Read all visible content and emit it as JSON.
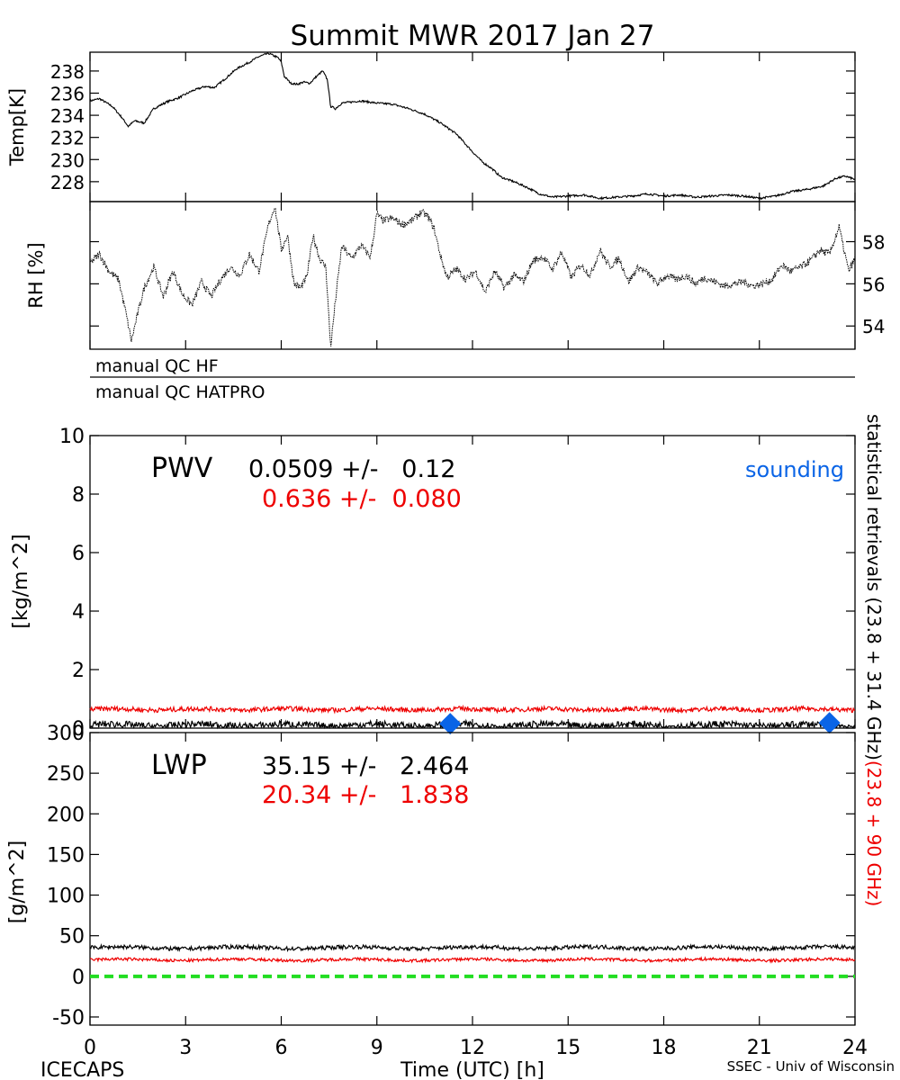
{
  "title": "Summit MWR 2017 Jan 27",
  "footer": {
    "left": "ICECAPS",
    "center": "Time (UTC) [h]",
    "right": "SSEC - Univ of Wisconsin"
  },
  "qc_labels": [
    "manual QC HF",
    "manual QC HATPRO"
  ],
  "right_label": {
    "black_part": "statistical retrievals (23.8 + 31.4 GHz)",
    "red_part": "(23.8 + 90 GHz)"
  },
  "colors": {
    "black": "#000000",
    "red": "#ee0000",
    "blue": "#0a64e6",
    "green": "#22dd22"
  },
  "chart_data": [
    {
      "id": "temp",
      "type": "line",
      "ylabel": "Temp[K]",
      "ylim": [
        226.2,
        239.7
      ],
      "xlim": [
        0,
        24
      ],
      "yticks": [
        "228",
        "230",
        "232",
        "234",
        "236",
        "238"
      ],
      "series": [
        {
          "color": "#000000",
          "x": [
            0,
            0.3,
            0.7,
            1.0,
            1.2,
            1.4,
            1.7,
            2.0,
            2.4,
            2.8,
            3.2,
            3.6,
            3.9,
            4.2,
            4.6,
            5.0,
            5.3,
            5.6,
            5.9,
            6.0,
            6.1,
            6.3,
            6.5,
            6.7,
            6.9,
            7.1,
            7.3,
            7.45,
            7.55,
            7.7,
            7.9,
            8.5,
            9.0,
            9.5,
            10.0,
            10.5,
            11.0,
            11.5,
            12.0,
            12.3,
            12.6,
            12.9,
            13.3,
            13.7,
            14.1,
            14.5,
            15.0,
            15.5,
            16.0,
            16.5,
            17.0,
            17.5,
            18.0,
            18.5,
            19.0,
            19.5,
            20.0,
            20.5,
            21.0,
            21.5,
            22.0,
            22.5,
            23.0,
            23.4,
            23.7,
            24.0
          ],
          "y": [
            235.3,
            235.5,
            234.8,
            233.8,
            233.0,
            233.5,
            233.3,
            234.6,
            235.2,
            235.6,
            236.2,
            236.6,
            236.5,
            237.2,
            238.2,
            238.8,
            239.3,
            239.6,
            239.2,
            238.8,
            237.5,
            236.9,
            236.8,
            237.0,
            236.9,
            237.5,
            238.0,
            237.2,
            234.8,
            234.6,
            235.1,
            235.3,
            235.1,
            235.0,
            234.6,
            234.1,
            233.3,
            232.3,
            230.7,
            229.8,
            229.2,
            228.4,
            228.0,
            227.5,
            226.9,
            226.6,
            226.7,
            226.8,
            226.5,
            226.6,
            226.7,
            226.9,
            226.7,
            226.8,
            226.6,
            226.7,
            226.8,
            226.7,
            226.5,
            226.7,
            227.1,
            227.3,
            227.6,
            228.3,
            228.5,
            228.2
          ]
        }
      ]
    },
    {
      "id": "rh",
      "type": "line",
      "ylabel": "RH [%]",
      "ylim": [
        52.9,
        59.9
      ],
      "xlim": [
        0,
        24
      ],
      "yticks": [
        "54",
        "56",
        "58"
      ],
      "series": [
        {
          "color": "#000000",
          "x": [
            0,
            0.3,
            0.6,
            0.9,
            1.1,
            1.3,
            1.5,
            1.7,
            2.0,
            2.3,
            2.6,
            2.9,
            3.2,
            3.5,
            3.8,
            4.1,
            4.4,
            4.7,
            5.0,
            5.3,
            5.6,
            5.8,
            6.0,
            6.2,
            6.4,
            6.6,
            6.8,
            7.0,
            7.2,
            7.4,
            7.55,
            7.7,
            7.9,
            8.2,
            8.5,
            8.8,
            9.0,
            9.2,
            9.5,
            9.8,
            10.1,
            10.4,
            10.6,
            10.8,
            11.0,
            11.2,
            11.5,
            11.8,
            12.1,
            12.4,
            12.7,
            13.0,
            13.3,
            13.6,
            13.9,
            14.2,
            14.5,
            14.8,
            15.1,
            15.4,
            15.7,
            16.0,
            16.3,
            16.6,
            16.9,
            17.2,
            17.5,
            17.8,
            18.1,
            18.4,
            18.7,
            19.0,
            19.3,
            19.6,
            19.9,
            20.2,
            20.5,
            20.8,
            21.1,
            21.4,
            21.7,
            22.0,
            22.3,
            22.6,
            22.9,
            23.2,
            23.5,
            23.8,
            24.0
          ],
          "y": [
            57.0,
            57.4,
            56.6,
            56.2,
            54.8,
            53.3,
            54.6,
            55.8,
            56.8,
            55.4,
            56.6,
            55.5,
            55.0,
            56.1,
            55.4,
            56.2,
            56.8,
            56.4,
            57.4,
            56.6,
            58.8,
            59.7,
            57.6,
            58.3,
            56.0,
            55.8,
            56.3,
            58.3,
            57.2,
            56.8,
            53.0,
            55.2,
            57.8,
            57.2,
            57.8,
            57.3,
            59.3,
            59.0,
            59.1,
            58.8,
            59.0,
            59.4,
            59.2,
            58.6,
            57.3,
            56.3,
            56.7,
            56.2,
            56.6,
            55.6,
            56.6,
            55.8,
            56.4,
            56.1,
            57.1,
            57.3,
            56.7,
            57.5,
            56.3,
            56.9,
            56.4,
            57.6,
            56.8,
            57.2,
            56.1,
            56.8,
            56.5,
            56.0,
            56.4,
            56.2,
            56.4,
            56.0,
            56.3,
            56.1,
            55.9,
            56.0,
            56.1,
            55.9,
            56.0,
            56.2,
            56.9,
            56.6,
            56.8,
            57.1,
            57.6,
            57.4,
            58.7,
            56.6,
            57.2
          ]
        }
      ]
    },
    {
      "id": "pwv",
      "type": "line",
      "ylabel": "[kg/m^2]",
      "ylim": [
        0,
        10
      ],
      "xlim": [
        0,
        24
      ],
      "yticks": [
        "0",
        "2",
        "4",
        "6",
        "8",
        "10"
      ],
      "annotation": {
        "label": "PWV",
        "black_stat": "0.0509 +/-   0.12",
        "red_stat": "0.636 +/-  0.080",
        "sounding_label": "sounding"
      },
      "series": [
        {
          "color": "#000000",
          "mean": 0.05,
          "noise": 0.12
        },
        {
          "color": "#ee0000",
          "mean": 0.64,
          "noise": 0.08
        }
      ],
      "soundings": [
        {
          "x": 11.3,
          "y": 0.15
        },
        {
          "x": 23.2,
          "y": 0.18
        }
      ]
    },
    {
      "id": "lwp",
      "type": "line",
      "ylabel": "[g/m^2]",
      "ylim": [
        -60,
        300
      ],
      "xlim": [
        0,
        24
      ],
      "yticks": [
        "-50",
        "0",
        "50",
        "100",
        "150",
        "200",
        "250",
        "300"
      ],
      "xticks": [
        "0",
        "3",
        "6",
        "9",
        "12",
        "15",
        "18",
        "21",
        "24"
      ],
      "annotation": {
        "label": "LWP",
        "black_stat": "35.15 +/-   2.464",
        "red_stat": "20.34 +/-   1.838"
      },
      "series": [
        {
          "color": "#000000",
          "mean": 35.15,
          "noise": 2.46
        },
        {
          "color": "#ee0000",
          "mean": 20.34,
          "noise": 1.84
        },
        {
          "color": "#22dd22",
          "mean": 0,
          "noise": 0,
          "style": "dashed"
        }
      ]
    }
  ]
}
